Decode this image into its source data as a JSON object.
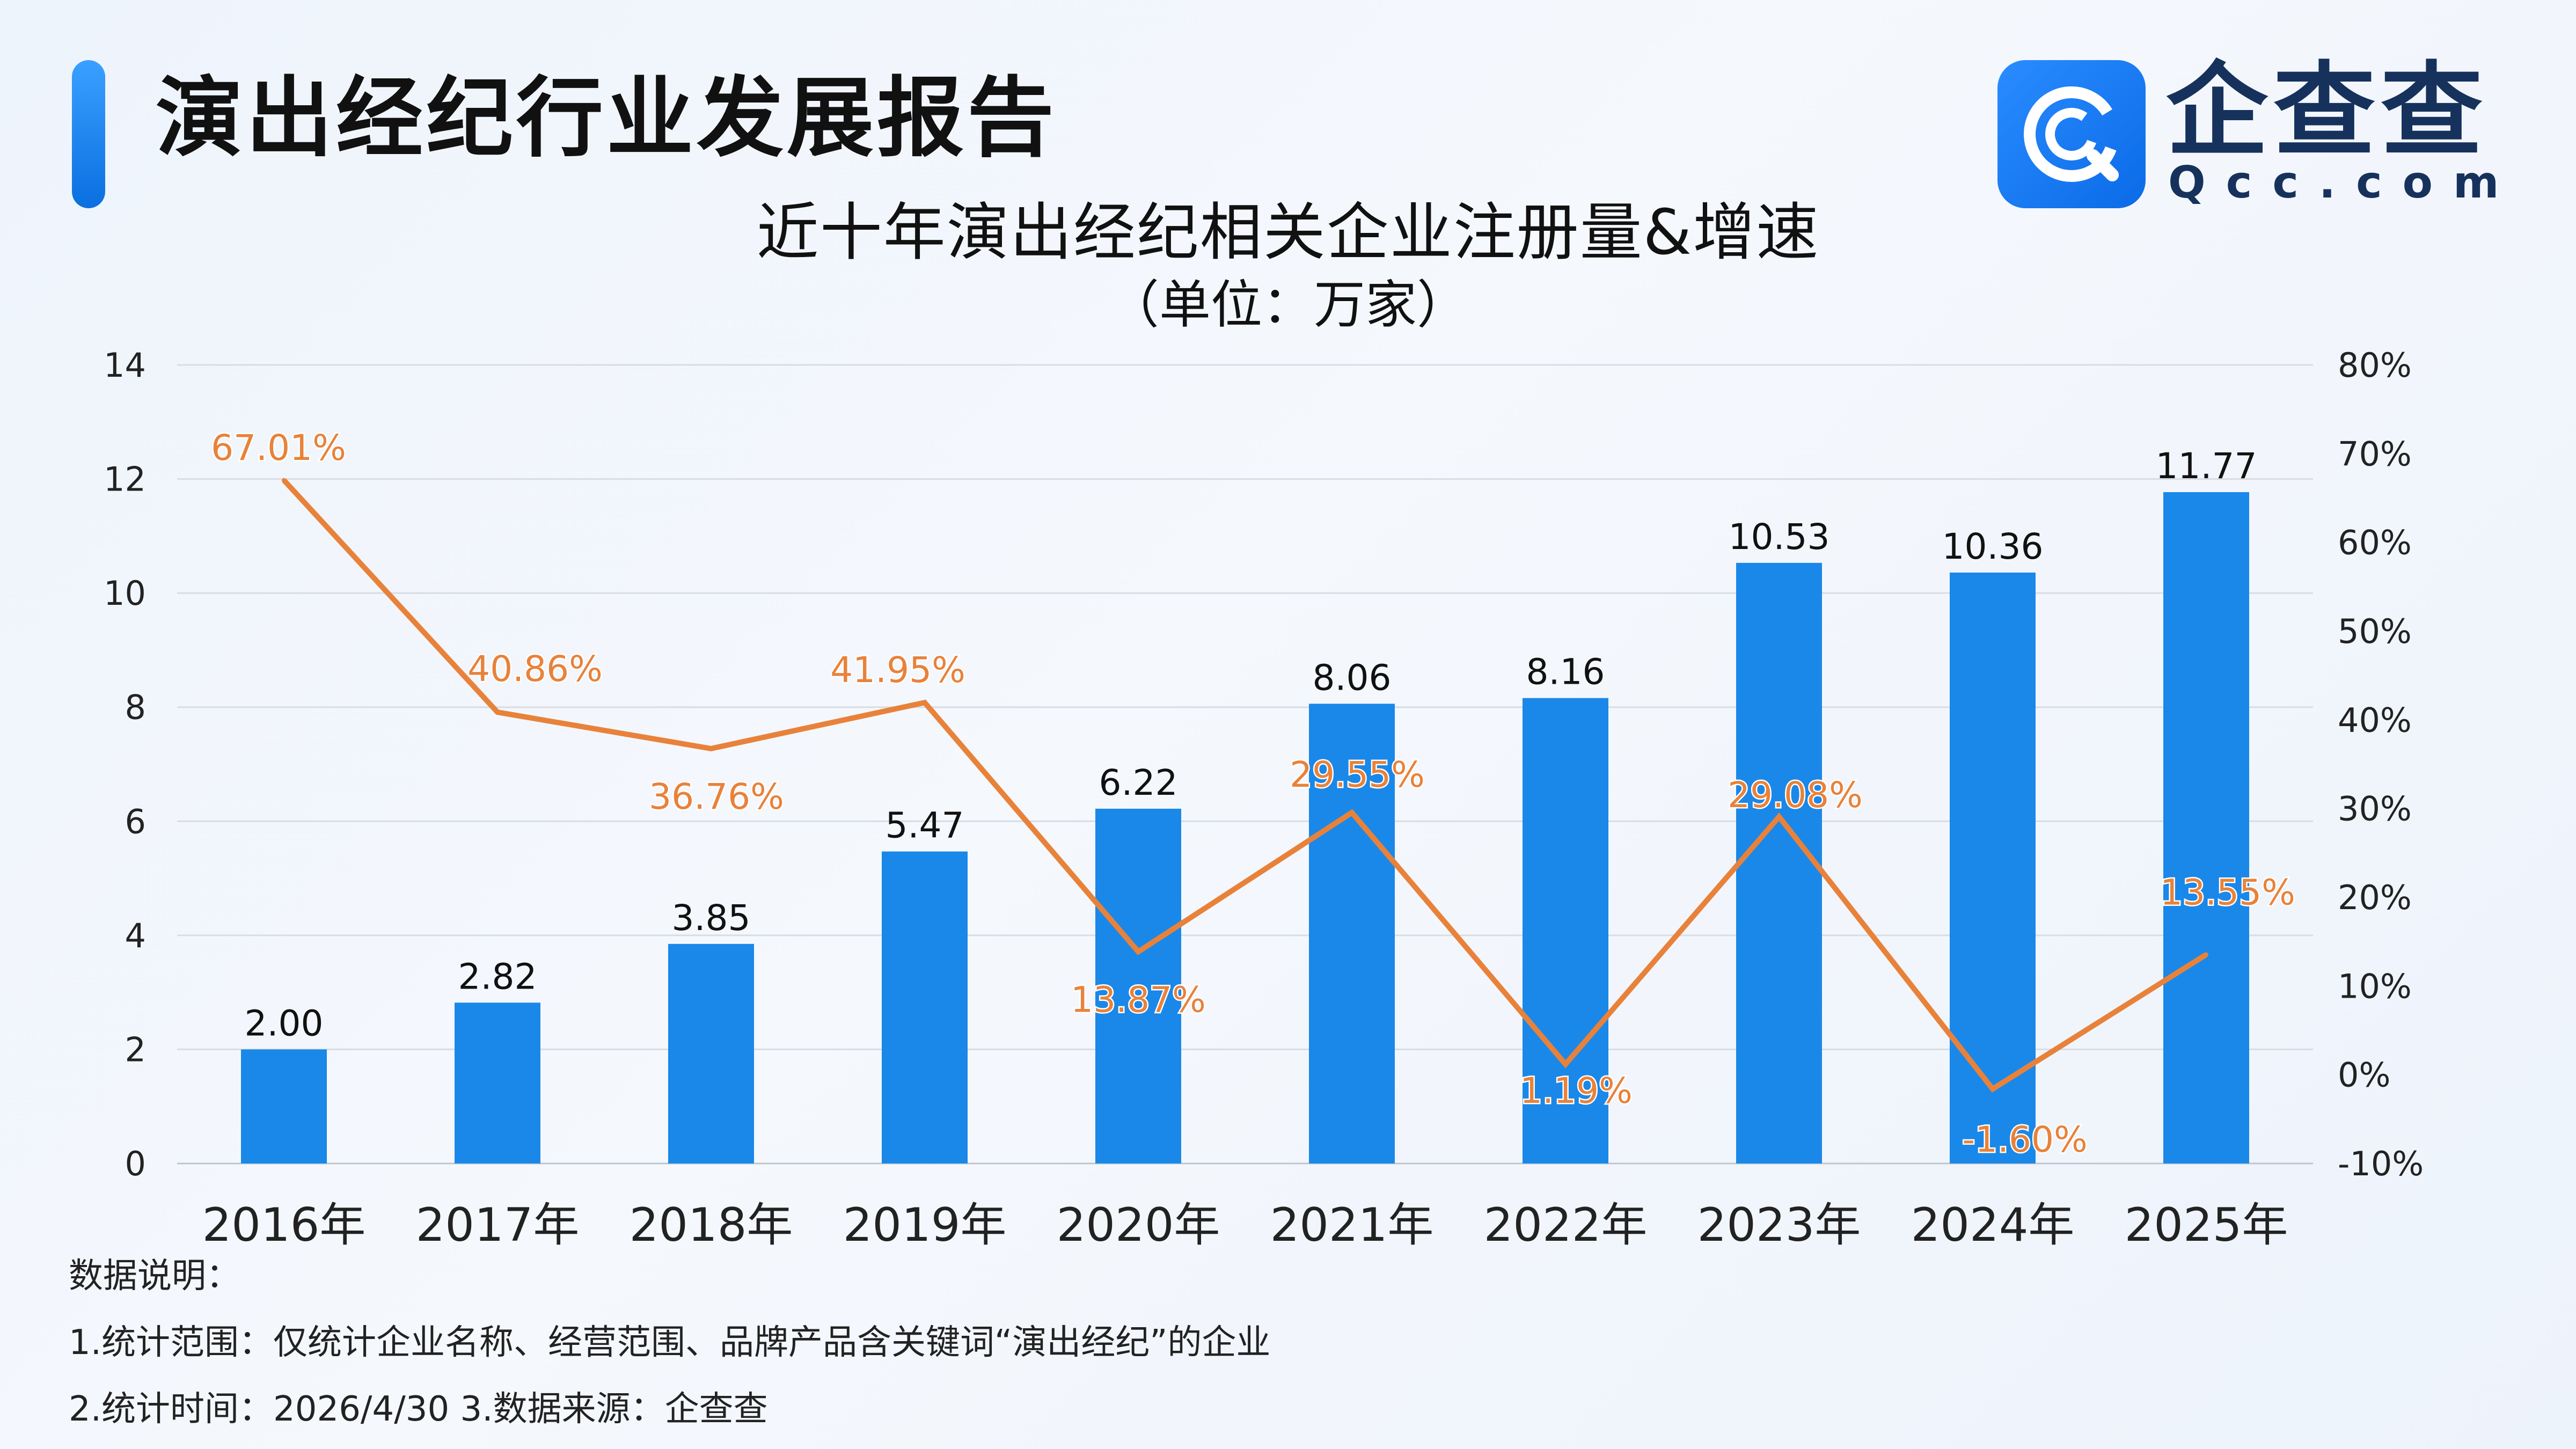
{
  "header": {
    "report_title": "演出经纪行业发展报告",
    "logo_name": "企查查",
    "logo_domain": "Qcc.com"
  },
  "chart_data": {
    "type": "bar",
    "title": "近十年演出经纪相关企业注册量&增速",
    "subtitle": "（单位：万家）",
    "categories": [
      "2016年",
      "2017年",
      "2018年",
      "2019年",
      "2020年",
      "2021年",
      "2022年",
      "2023年",
      "2024年",
      "2025年"
    ],
    "series": [
      {
        "name": "注册量",
        "type": "bar",
        "color": "#1a88e8",
        "values": [
          2.0,
          2.82,
          3.85,
          5.47,
          6.22,
          8.06,
          8.16,
          10.53,
          10.36,
          11.77
        ],
        "labels": [
          "2.00",
          "2.82",
          "3.85",
          "5.47",
          "6.22",
          "8.06",
          "8.16",
          "10.53",
          "10.36",
          "11.77"
        ]
      },
      {
        "name": "增速",
        "type": "line",
        "axis": "right",
        "color": "#e8823a",
        "values": [
          67.01,
          40.86,
          36.76,
          41.95,
          13.87,
          29.55,
          1.19,
          29.08,
          -1.6,
          13.55
        ],
        "labels": [
          "67.01%",
          "40.86%",
          "36.76%",
          "41.95%",
          "13.87%",
          "29.55%",
          "1.19%",
          "29.08%",
          "-1.60%",
          "13.55%"
        ]
      }
    ],
    "ylim": [
      0,
      14
    ],
    "yticks": [
      "0",
      "2",
      "4",
      "6",
      "8",
      "10",
      "12",
      "14"
    ],
    "y2lim": [
      -10,
      80
    ],
    "y2ticks": [
      "-10%",
      "0%",
      "10%",
      "20%",
      "30%",
      "40%",
      "50%",
      "60%",
      "70%",
      "80%"
    ],
    "grid": true
  },
  "notes": {
    "heading": "数据说明：",
    "line1": "1.统计范围：仅统计企业名称、经营范围、品牌产品含关键词“演出经纪”的企业",
    "line2": "2.统计时间：2026/4/30  3.数据来源：企查查"
  }
}
